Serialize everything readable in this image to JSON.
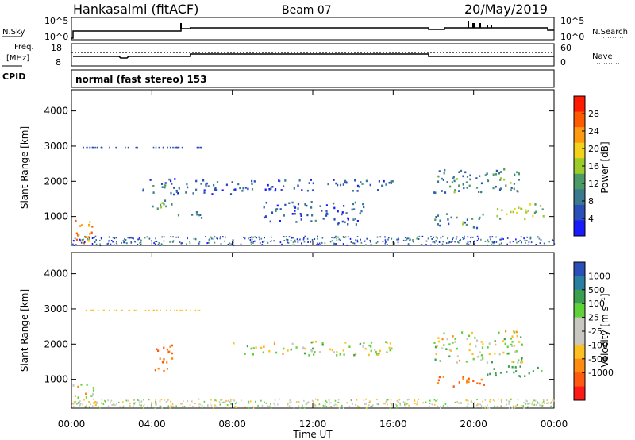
{
  "header": {
    "station": "Hankasalmi (fitACF)",
    "beam": "Beam 07",
    "date": "20/May/2019"
  },
  "nsky_panel": {
    "left_label": "N.Sky",
    "left_ticks": [
      "10^5",
      "10^0"
    ],
    "right_ticks": [
      "10^5",
      "10^0"
    ],
    "right_label": "N.Search"
  },
  "freq_panel": {
    "left_label_line1": "Freq.",
    "left_label_line2": "[MHz]",
    "left_ticks": [
      "18",
      "8"
    ],
    "right_ticks": [
      "60",
      "0"
    ],
    "right_label": "Nave"
  },
  "cpid_panel": {
    "label": "CPID",
    "text": "normal (fast stereo) 153"
  },
  "colors": {
    "power_scale": [
      "#1a1aff",
      "#2a4fb8",
      "#3a7a8f",
      "#4c9a66",
      "#9ccc2a",
      "#f2d21a",
      "#ff9a10",
      "#ff5a00",
      "#ff1a00"
    ],
    "velocity_scale": [
      "#ff1a1a",
      "#ff5a10",
      "#ff8c10",
      "#ffbf20",
      "#c8c8c0",
      "#c8c8c0",
      "#5fd23a",
      "#3aa050",
      "#2a7fa0",
      "#2a4fb8"
    ]
  },
  "chart_data": [
    {
      "type": "heatmap",
      "name": "power",
      "xlabel": "Time UT",
      "ylabel": "Slant Range [km]",
      "xlim": [
        0,
        24
      ],
      "ylim": [
        180,
        4600
      ],
      "y_ticks": [
        "4000",
        "3000",
        "2000",
        "1000"
      ],
      "colorbar_label": "Power [dB]",
      "colorbar_ticks": [
        "28",
        "24",
        "20",
        "16",
        "12",
        "8",
        "4"
      ],
      "colorbar_range": [
        0,
        32
      ],
      "echo_regions": [
        {
          "t0": 0.0,
          "t1": 1.0,
          "r0": 200,
          "r1": 1000,
          "value": 24
        },
        {
          "t0": 4.0,
          "t1": 5.0,
          "r0": 1200,
          "r1": 1600,
          "value": 12
        },
        {
          "t0": 5.0,
          "t1": 6.5,
          "r0": 950,
          "r1": 1150,
          "value": 10
        },
        {
          "t0": 3.5,
          "t1": 8.0,
          "r0": 1650,
          "r1": 2100,
          "value": 6
        },
        {
          "t0": 8.0,
          "t1": 16.0,
          "r0": 1750,
          "r1": 2100,
          "value": 6
        },
        {
          "t0": 9.5,
          "t1": 14.5,
          "r0": 800,
          "r1": 1450,
          "value": 6
        },
        {
          "t0": 18.0,
          "t1": 22.5,
          "r0": 1700,
          "r1": 2400,
          "value": 10
        },
        {
          "t0": 18.0,
          "t1": 20.5,
          "r0": 700,
          "r1": 1100,
          "value": 10
        },
        {
          "t0": 21.0,
          "t1": 23.5,
          "r0": 950,
          "r1": 1400,
          "value": 16
        }
      ]
    },
    {
      "type": "heatmap",
      "name": "velocity",
      "xlabel": "Time UT",
      "ylabel": "Slant Range [km]",
      "xlim": [
        0,
        24
      ],
      "ylim": [
        180,
        4600
      ],
      "x_ticks": [
        "00:00",
        "04:00",
        "08:00",
        "12:00",
        "16:00",
        "20:00",
        "00:00"
      ],
      "y_ticks": [
        "4000",
        "3000",
        "2000",
        "1000"
      ],
      "colorbar_label": "Velocity [m s⁻¹]",
      "colorbar_ticks": [
        "1000",
        "500",
        "100",
        "25",
        "-25",
        "-100",
        "-500",
        "-1000"
      ],
      "echo_regions": [
        {
          "t0": 0.0,
          "t1": 1.2,
          "r0": 300,
          "r1": 900,
          "value": 0
        },
        {
          "t0": 4.0,
          "t1": 5.0,
          "r0": 1200,
          "r1": 2000,
          "value": -300
        },
        {
          "t0": 8.0,
          "t1": 16.0,
          "r0": 1700,
          "r1": 2100,
          "value": 0
        },
        {
          "t0": 18.0,
          "t1": 22.5,
          "r0": 1500,
          "r1": 2400,
          "value": 0
        },
        {
          "t0": 18.0,
          "t1": 20.5,
          "r0": 800,
          "r1": 1100,
          "value": -300
        },
        {
          "t0": 20.5,
          "t1": 23.5,
          "r0": 1100,
          "r1": 1400,
          "value": 200
        }
      ]
    }
  ]
}
